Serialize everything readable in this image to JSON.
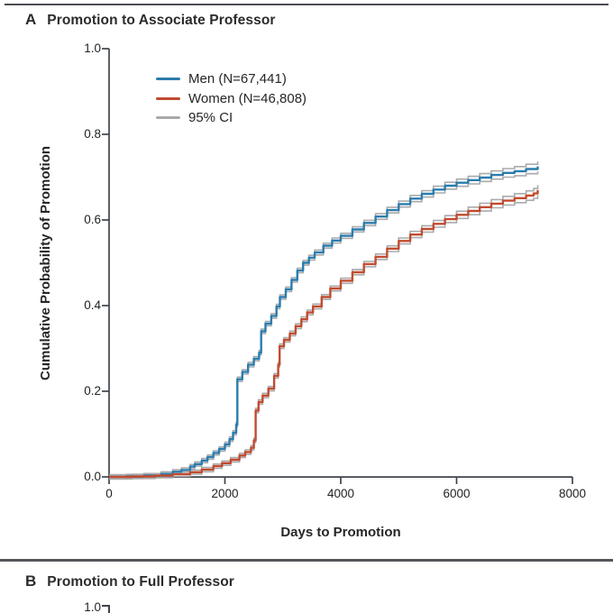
{
  "panel_a": {
    "label": "A",
    "title": "Promotion to Associate Professor",
    "y_axis": {
      "title": "Cumulative Probability of Promotion"
    },
    "x_axis": {
      "title": "Days to Promotion"
    },
    "legend": [
      {
        "label": "Men (N=67,441)",
        "color": "#2b7cad"
      },
      {
        "label": "Women (N=46,808)",
        "color": "#c14b2f"
      },
      {
        "label": "95% CI",
        "color": "#a9aaac"
      }
    ]
  },
  "panel_b": {
    "label": "B",
    "title": "Promotion to Full Professor",
    "visible_y_tick": "1.0"
  },
  "colors": {
    "men": "#2b7cad",
    "women": "#c14b2f",
    "ci": "#a9aaac",
    "axis": "#3f444c",
    "text": "#262626"
  },
  "chart_data": [
    {
      "type": "line",
      "style": "kaplan-meier-step-with-95ci",
      "title": "Promotion to Associate Professor",
      "xlabel": "Days to Promotion",
      "ylabel": "Cumulative Probability of Promotion",
      "xlim": [
        0,
        8000
      ],
      "ylim": [
        0.0,
        1.0
      ],
      "x_ticks": [
        0,
        2000,
        4000,
        6000,
        8000
      ],
      "x_tick_labels": [
        "0",
        "2000",
        "4000",
        "6000",
        "8000"
      ],
      "y_ticks": [
        1.0,
        0.8,
        0.6,
        0.4,
        0.2,
        0.0
      ],
      "y_tick_labels": [
        "1.0",
        "0.8",
        "0.6",
        "0.4",
        "0.2",
        "0.0"
      ],
      "grid": false,
      "legend_position": "upper-left-inside",
      "ci_label": "95% CI",
      "series": [
        {
          "name": "Men (N=67,441)",
          "n": 67441,
          "color": "#2b7cad",
          "points": [
            [
              0,
              0.0
            ],
            [
              300,
              0.001
            ],
            [
              600,
              0.003
            ],
            [
              900,
              0.007
            ],
            [
              1100,
              0.012
            ],
            [
              1250,
              0.016
            ],
            [
              1400,
              0.024
            ],
            [
              1480,
              0.03
            ],
            [
              1600,
              0.038
            ],
            [
              1700,
              0.046
            ],
            [
              1800,
              0.056
            ],
            [
              1900,
              0.065
            ],
            [
              2000,
              0.076
            ],
            [
              2080,
              0.088
            ],
            [
              2140,
              0.103
            ],
            [
              2195,
              0.122
            ],
            [
              2215,
              0.228
            ],
            [
              2300,
              0.245
            ],
            [
              2400,
              0.262
            ],
            [
              2500,
              0.276
            ],
            [
              2590,
              0.29
            ],
            [
              2625,
              0.34
            ],
            [
              2700,
              0.358
            ],
            [
              2800,
              0.376
            ],
            [
              2890,
              0.398
            ],
            [
              2950,
              0.42
            ],
            [
              3050,
              0.438
            ],
            [
              3150,
              0.46
            ],
            [
              3250,
              0.482
            ],
            [
              3350,
              0.5
            ],
            [
              3450,
              0.512
            ],
            [
              3550,
              0.524
            ],
            [
              3700,
              0.54
            ],
            [
              3850,
              0.552
            ],
            [
              4000,
              0.563
            ],
            [
              4200,
              0.578
            ],
            [
              4400,
              0.593
            ],
            [
              4600,
              0.608
            ],
            [
              4800,
              0.623
            ],
            [
              5000,
              0.637
            ],
            [
              5200,
              0.65
            ],
            [
              5400,
              0.661
            ],
            [
              5600,
              0.671
            ],
            [
              5800,
              0.68
            ],
            [
              6000,
              0.687
            ],
            [
              6200,
              0.693
            ],
            [
              6400,
              0.699
            ],
            [
              6600,
              0.705
            ],
            [
              6800,
              0.71
            ],
            [
              7000,
              0.714
            ],
            [
              7200,
              0.719
            ],
            [
              7400,
              0.725
            ]
          ]
        },
        {
          "name": "Women (N=46,808)",
          "n": 46808,
          "color": "#c14b2f",
          "points": [
            [
              0,
              0.0
            ],
            [
              400,
              0.001
            ],
            [
              800,
              0.003
            ],
            [
              1100,
              0.006
            ],
            [
              1400,
              0.011
            ],
            [
              1600,
              0.017
            ],
            [
              1800,
              0.025
            ],
            [
              1950,
              0.032
            ],
            [
              2100,
              0.04
            ],
            [
              2250,
              0.05
            ],
            [
              2350,
              0.058
            ],
            [
              2450,
              0.068
            ],
            [
              2500,
              0.085
            ],
            [
              2530,
              0.155
            ],
            [
              2580,
              0.175
            ],
            [
              2650,
              0.19
            ],
            [
              2750,
              0.206
            ],
            [
              2850,
              0.236
            ],
            [
              2920,
              0.262
            ],
            [
              2945,
              0.305
            ],
            [
              3020,
              0.32
            ],
            [
              3120,
              0.335
            ],
            [
              3220,
              0.352
            ],
            [
              3320,
              0.368
            ],
            [
              3420,
              0.384
            ],
            [
              3520,
              0.398
            ],
            [
              3670,
              0.42
            ],
            [
              3820,
              0.44
            ],
            [
              4000,
              0.458
            ],
            [
              4200,
              0.478
            ],
            [
              4400,
              0.497
            ],
            [
              4600,
              0.514
            ],
            [
              4800,
              0.533
            ],
            [
              5000,
              0.551
            ],
            [
              5200,
              0.566
            ],
            [
              5400,
              0.579
            ],
            [
              5600,
              0.591
            ],
            [
              5800,
              0.602
            ],
            [
              6000,
              0.612
            ],
            [
              6200,
              0.621
            ],
            [
              6400,
              0.63
            ],
            [
              6600,
              0.638
            ],
            [
              6800,
              0.645
            ],
            [
              7000,
              0.651
            ],
            [
              7200,
              0.657
            ],
            [
              7330,
              0.662
            ],
            [
              7400,
              0.67
            ]
          ]
        }
      ]
    },
    {
      "type": "line",
      "style": "kaplan-meier-step-with-95ci",
      "title": "Promotion to Full Professor",
      "note": "panel truncated by image edge; only y-axis tick 1.0 visible",
      "y_ticks_visible": [
        1.0
      ],
      "series": []
    }
  ]
}
